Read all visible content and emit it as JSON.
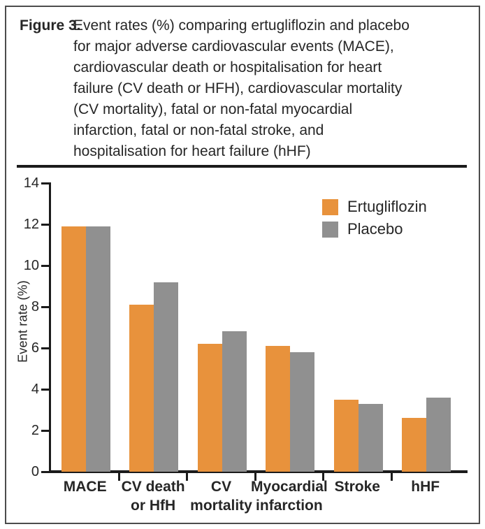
{
  "figure": {
    "label": "Figure 3.",
    "caption": "Event rates (%) comparing ertugliflozin and placebo\nfor major adverse cardiovascular events (MACE),\ncardiovascular death or hospitalisation for heart\nfailure (CV death or HFH), cardiovascular mortality\n(CV mortality), fatal or non-fatal myocardial\ninfarction, fatal or non-fatal stroke, and\nhospitalisation for heart failure (hHF)"
  },
  "chart_data": {
    "type": "bar",
    "title": "",
    "xlabel": "",
    "ylabel": "Event rate (%)",
    "ylim": [
      0,
      14
    ],
    "yticks": [
      0,
      2,
      4,
      6,
      8,
      10,
      12,
      14
    ],
    "grid": false,
    "legend_position": "top-right",
    "categories": [
      "MACE",
      "CV death\nor HfH",
      "CV\nmortality",
      "Myocardial\ninfarction",
      "Stroke",
      "hHF"
    ],
    "series": [
      {
        "name": "Ertugliflozin",
        "color": "#E8923C",
        "values": [
          11.9,
          8.1,
          6.2,
          6.1,
          3.5,
          2.6
        ]
      },
      {
        "name": "Placebo",
        "color": "#909090",
        "values": [
          11.9,
          9.2,
          6.8,
          5.8,
          3.3,
          3.6
        ]
      }
    ],
    "colors": {
      "axis": "#1b1b1b",
      "text": "#262626"
    }
  }
}
